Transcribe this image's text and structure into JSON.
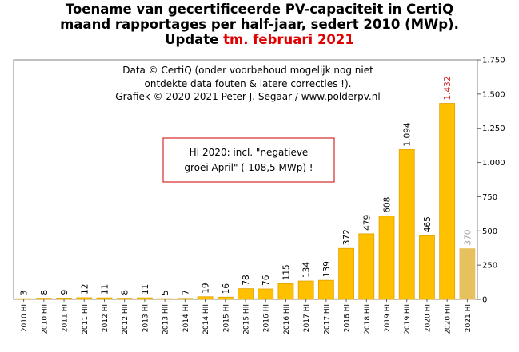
{
  "colors": {
    "bar": "#ffc000",
    "bar_stroke": "#e0a000",
    "bar_latest": "#e6c15e",
    "highlight": "#d62828",
    "latest_label": "#a0a0a0",
    "note_border": "#d62828",
    "plot_border": "#808080"
  },
  "title": {
    "line1": "Toename van gecertificeerde PV-capaciteit in CertiQ",
    "line2": "maand rapportages per half-jaar, sedert 2010 (MWp).",
    "line3_prefix": "Update ",
    "line3_highlight": "tm. februari 2021"
  },
  "credits": [
    "Data © CertiQ (onder voorbehoud mogelijk  nog niet",
    "ontdekte data fouten & latere correcties !).",
    "Grafiek  © 2020-2021 Peter J. Segaar / www.polderpv.nl"
  ],
  "note": [
    "HI 2020:  incl. \"negatieve",
    "groei April\"  (-108,5 MWp)  !"
  ],
  "chart_data": {
    "type": "bar",
    "categories": [
      "2010 HI",
      "2010 HII",
      "2011 HI",
      "2011 HII",
      "2012 HI",
      "2012 HII",
      "2013 HI",
      "2013 HII",
      "2014 HI",
      "2014 HII",
      "2015 HI",
      "2015 HII",
      "2016 HI",
      "2016 HII",
      "2017 HI",
      "2017 HII",
      "2018 HI",
      "2018 HII",
      "2019 HI",
      "2019 HII",
      "2020 HI",
      "2020 HII",
      "2021 HI"
    ],
    "values": [
      3,
      8,
      9,
      12,
      11,
      8,
      11,
      5,
      7,
      19,
      16,
      78,
      76,
      115,
      134,
      139,
      372,
      479,
      608,
      1094,
      465,
      1432,
      370
    ],
    "labels": [
      "3",
      "8",
      "9",
      "12",
      "11",
      "8",
      "11",
      "5",
      "7",
      "19",
      "16",
      "78",
      "76",
      "115",
      "134",
      "139",
      "372",
      "479",
      "608",
      "1.094",
      "465",
      "1.432",
      "370"
    ],
    "yticks": [
      0,
      250,
      500,
      750,
      1000,
      1250,
      1500,
      1750
    ],
    "ytick_labels": [
      "0",
      "250",
      "500",
      "750",
      "1.000",
      "1.250",
      "1.500",
      "1.750"
    ],
    "ylim": [
      0,
      1750
    ],
    "y_axis_side": "right",
    "grid": false,
    "highlight_index": 21,
    "partial_index": 22
  }
}
